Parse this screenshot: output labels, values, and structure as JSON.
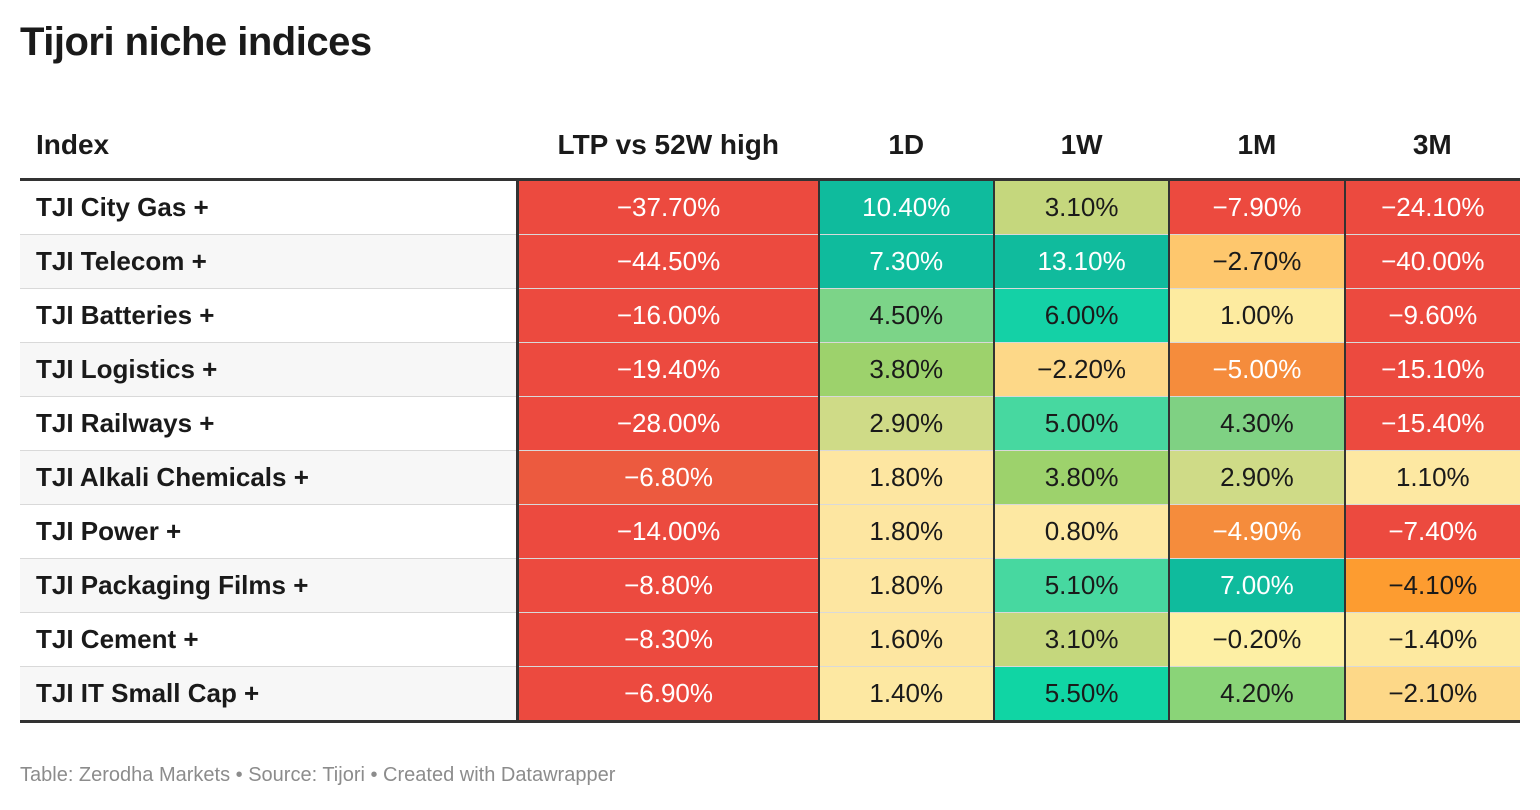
{
  "title": "Tijori niche indices",
  "footer": "Table: Zerodha Markets • Source: Tijori • Created with Datawrapper",
  "chart_data": {
    "type": "table",
    "title": "Tijori niche indices",
    "columns": [
      "Index",
      "LTP vs 52W high",
      "1D",
      "1W",
      "1M",
      "3M"
    ],
    "rows": [
      {
        "name": "TJI City Gas +",
        "values": [
          "−37.70%",
          "10.40%",
          "3.10%",
          "−7.90%",
          "−24.10%"
        ],
        "colors": [
          "#ec4a3f",
          "#0fbb9d",
          "#c5d77d",
          "#ec4a3f",
          "#ec4a3f"
        ]
      },
      {
        "name": "TJI Telecom +",
        "values": [
          "−44.50%",
          "7.30%",
          "13.10%",
          "−2.70%",
          "−40.00%"
        ],
        "colors": [
          "#ec4a3f",
          "#0fbb9d",
          "#10bb9d",
          "#fec76d",
          "#ec4a3f"
        ]
      },
      {
        "name": "TJI Batteries +",
        "values": [
          "−16.00%",
          "4.50%",
          "6.00%",
          "1.00%",
          "−9.60%"
        ],
        "colors": [
          "#ec4a3f",
          "#7cd488",
          "#14d1a6",
          "#fdeba0",
          "#ec4a3f"
        ]
      },
      {
        "name": "TJI Logistics +",
        "values": [
          "−19.40%",
          "3.80%",
          "−2.20%",
          "−5.00%",
          "−15.10%"
        ],
        "colors": [
          "#ec4a3f",
          "#9dd26c",
          "#fdd888",
          "#f58c3c",
          "#ec4a3f"
        ]
      },
      {
        "name": "TJI Railways +",
        "values": [
          "−28.00%",
          "2.90%",
          "5.00%",
          "4.30%",
          "−15.40%"
        ],
        "colors": [
          "#ec4a3f",
          "#cfdb87",
          "#47d8a0",
          "#7fd183",
          "#ec4a3f"
        ]
      },
      {
        "name": "TJI Alkali Chemicals +",
        "values": [
          "−6.80%",
          "1.80%",
          "3.80%",
          "2.90%",
          "1.10%"
        ],
        "colors": [
          "#ec5a3f",
          "#fde6a1",
          "#9dd26c",
          "#cfdb87",
          "#fde8a2"
        ]
      },
      {
        "name": "TJI Power +",
        "values": [
          "−14.00%",
          "1.80%",
          "0.80%",
          "−4.90%",
          "−7.40%"
        ],
        "colors": [
          "#ec4a3f",
          "#fde6a1",
          "#fde8a2",
          "#f58c3c",
          "#ec4a3f"
        ]
      },
      {
        "name": "TJI Packaging Films +",
        "values": [
          "−8.80%",
          "1.80%",
          "5.10%",
          "7.00%",
          "−4.10%"
        ],
        "colors": [
          "#ec4a3f",
          "#fde6a1",
          "#47d8a0",
          "#0fbb9d",
          "#fd9c30"
        ]
      },
      {
        "name": "TJI Cement +",
        "values": [
          "−8.30%",
          "1.60%",
          "3.10%",
          "−0.20%",
          "−1.40%"
        ],
        "colors": [
          "#ec4a3f",
          "#fde6a1",
          "#c5d77d",
          "#fdefa4",
          "#fde9a0"
        ]
      },
      {
        "name": "TJI IT Small Cap +",
        "values": [
          "−6.90%",
          "1.40%",
          "5.50%",
          "4.20%",
          "−2.10%"
        ],
        "colors": [
          "#ec4a3f",
          "#fde8a2",
          "#10d5a4",
          "#8ad478",
          "#fdd888"
        ]
      }
    ]
  }
}
